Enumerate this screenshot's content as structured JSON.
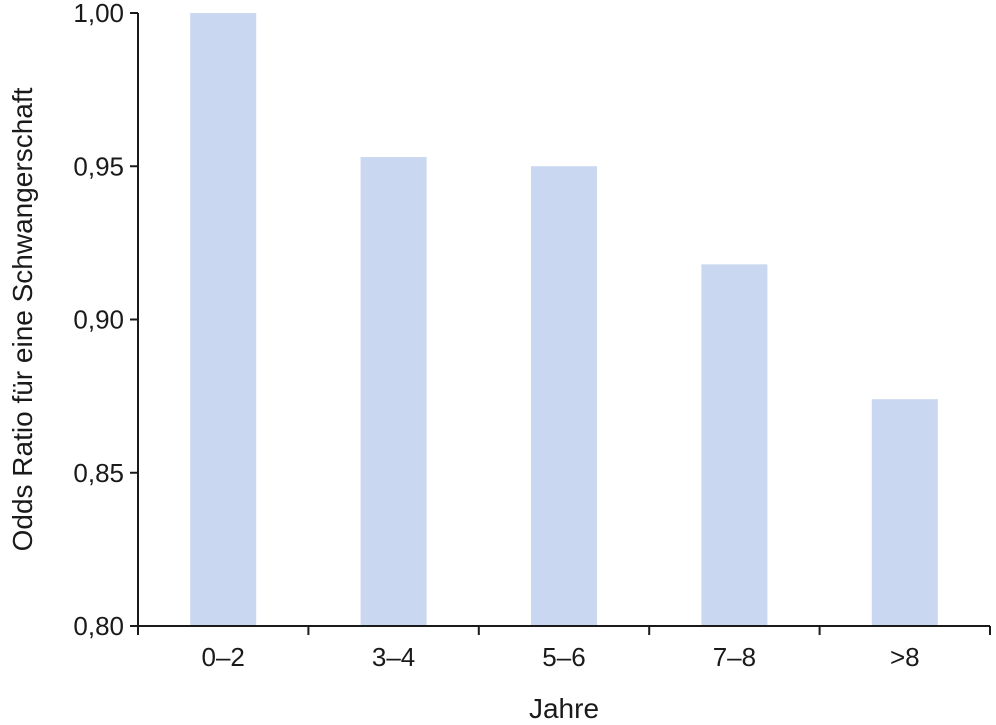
{
  "chart_data": {
    "type": "bar",
    "title": "",
    "xlabel": "Jahre",
    "ylabel": "Odds Ratio für eine Schwangerschaft",
    "categories": [
      "0–2",
      "3–4",
      "5–6",
      "7–8",
      ">8"
    ],
    "values": [
      1.0,
      0.953,
      0.95,
      0.918,
      0.874
    ],
    "ylim": [
      0.8,
      1.0
    ],
    "yticks": [
      "0,80",
      "0,85",
      "0,90",
      "0,95",
      "1,00"
    ],
    "ytick_values": [
      0.8,
      0.85,
      0.9,
      0.95,
      1.0
    ],
    "grid": false,
    "bar_color": "#c9d7f0",
    "axis_color": "#1a1a1a"
  }
}
